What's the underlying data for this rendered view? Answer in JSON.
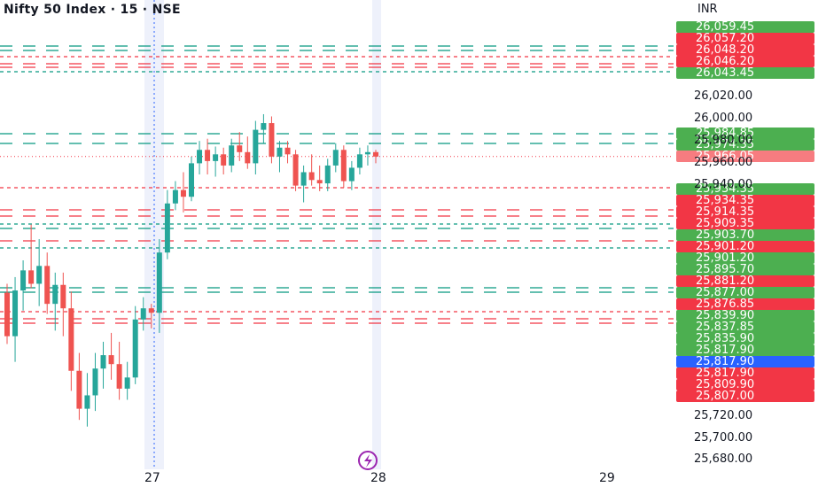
{
  "header": {
    "title": "Nifty 50 Index · 15 · NSE"
  },
  "axis": {
    "currency": "INR",
    "y_ticks": [
      "26,020.00",
      "26,000.00",
      "25,980.00",
      "25,960.00",
      "25,940.00",
      "25,720.00",
      "25,700.00",
      "25,680.00"
    ],
    "x_ticks": [
      "27",
      "28",
      "29"
    ]
  },
  "colors": {
    "up": "#26a69a",
    "down": "#ef5350",
    "tag_green": "#4caf50",
    "tag_red": "#f23645",
    "tag_current": "#f77c80",
    "tag_blue": "#2962ff",
    "line_green": "#089981",
    "line_red": "#f23645"
  },
  "price_tags": [
    {
      "label": "26,059.45",
      "color": "green"
    },
    {
      "label": "26,057.20",
      "color": "red"
    },
    {
      "label": "26,048.20",
      "color": "red"
    },
    {
      "label": "26,046.20",
      "color": "red"
    },
    {
      "label": "26,043.45",
      "color": "green"
    },
    {
      "label": "25,984.85",
      "color": "green"
    },
    {
      "label": "25,974.35",
      "color": "green"
    },
    {
      "label": "25,966.05",
      "color": "current"
    },
    {
      "label": "25,934.35",
      "color": "green"
    },
    {
      "label": "25,934.35",
      "color": "red"
    },
    {
      "label": "25,914.35",
      "color": "red"
    },
    {
      "label": "25,909.35",
      "color": "red"
    },
    {
      "label": "25,903.70",
      "color": "green"
    },
    {
      "label": "25,901.20",
      "color": "red"
    },
    {
      "label": "25,901.20",
      "color": "green"
    },
    {
      "label": "25,895.70",
      "color": "green"
    },
    {
      "label": "25,881.20",
      "color": "red"
    },
    {
      "label": "25,877.00",
      "color": "green"
    },
    {
      "label": "25,876.85",
      "color": "red"
    },
    {
      "label": "25,839.90",
      "color": "green"
    },
    {
      "label": "25,837.85",
      "color": "green"
    },
    {
      "label": "25,835.90",
      "color": "green"
    },
    {
      "label": "25,817.90",
      "color": "green"
    },
    {
      "label": "25,817.90",
      "color": "blue"
    },
    {
      "label": "25,817.90",
      "color": "red"
    },
    {
      "label": "25,809.90",
      "color": "red"
    },
    {
      "label": "25,807.00",
      "color": "red"
    }
  ],
  "chart_data": {
    "type": "candlestick",
    "title": "Nifty 50 Index · 15 · NSE",
    "currency": "INR",
    "x_ticks": [
      "27",
      "28",
      "29"
    ],
    "last_price": 25966.05,
    "candles": [
      {
        "o": 25844,
        "h": 25852,
        "l": 25798,
        "c": 25805
      },
      {
        "o": 25805,
        "h": 25858,
        "l": 25782,
        "c": 25846
      },
      {
        "o": 25846,
        "h": 25873,
        "l": 25828,
        "c": 25864
      },
      {
        "o": 25864,
        "h": 25905,
        "l": 25848,
        "c": 25852
      },
      {
        "o": 25852,
        "h": 25892,
        "l": 25832,
        "c": 25868
      },
      {
        "o": 25868,
        "h": 25880,
        "l": 25825,
        "c": 25834
      },
      {
        "o": 25834,
        "h": 25862,
        "l": 25810,
        "c": 25851
      },
      {
        "o": 25851,
        "h": 25862,
        "l": 25805,
        "c": 25830
      },
      {
        "o": 25830,
        "h": 25845,
        "l": 25756,
        "c": 25774
      },
      {
        "o": 25774,
        "h": 25790,
        "l": 25730,
        "c": 25740
      },
      {
        "o": 25740,
        "h": 25772,
        "l": 25724,
        "c": 25752
      },
      {
        "o": 25752,
        "h": 25790,
        "l": 25738,
        "c": 25776
      },
      {
        "o": 25776,
        "h": 25800,
        "l": 25758,
        "c": 25788
      },
      {
        "o": 25788,
        "h": 25808,
        "l": 25766,
        "c": 25780
      },
      {
        "o": 25780,
        "h": 25800,
        "l": 25748,
        "c": 25758
      },
      {
        "o": 25758,
        "h": 25782,
        "l": 25748,
        "c": 25768
      },
      {
        "o": 25768,
        "h": 25832,
        "l": 25762,
        "c": 25820
      },
      {
        "o": 25820,
        "h": 25840,
        "l": 25810,
        "c": 25830
      },
      {
        "o": 25830,
        "h": 25834,
        "l": 25812,
        "c": 25826
      },
      {
        "o": 25826,
        "h": 25892,
        "l": 25808,
        "c": 25880
      },
      {
        "o": 25880,
        "h": 25936,
        "l": 25874,
        "c": 25924
      },
      {
        "o": 25924,
        "h": 25944,
        "l": 25918,
        "c": 25936
      },
      {
        "o": 25936,
        "h": 25952,
        "l": 25916,
        "c": 25930
      },
      {
        "o": 25930,
        "h": 25966,
        "l": 25926,
        "c": 25960
      },
      {
        "o": 25960,
        "h": 25980,
        "l": 25950,
        "c": 25972
      },
      {
        "o": 25972,
        "h": 25982,
        "l": 25950,
        "c": 25962
      },
      {
        "o": 25962,
        "h": 25975,
        "l": 25948,
        "c": 25968
      },
      {
        "o": 25968,
        "h": 25974,
        "l": 25950,
        "c": 25958
      },
      {
        "o": 25958,
        "h": 25982,
        "l": 25952,
        "c": 25976
      },
      {
        "o": 25976,
        "h": 25988,
        "l": 25962,
        "c": 25970
      },
      {
        "o": 25970,
        "h": 25984,
        "l": 25955,
        "c": 25960
      },
      {
        "o": 25960,
        "h": 25998,
        "l": 25950,
        "c": 25990
      },
      {
        "o": 25990,
        "h": 26004,
        "l": 25978,
        "c": 25996
      },
      {
        "o": 25996,
        "h": 26002,
        "l": 25960,
        "c": 25966
      },
      {
        "o": 25966,
        "h": 25980,
        "l": 25952,
        "c": 25974
      },
      {
        "o": 25974,
        "h": 25980,
        "l": 25960,
        "c": 25968
      },
      {
        "o": 25968,
        "h": 25972,
        "l": 25935,
        "c": 25940
      },
      {
        "o": 25940,
        "h": 25958,
        "l": 25925,
        "c": 25952
      },
      {
        "o": 25952,
        "h": 25968,
        "l": 25940,
        "c": 25945
      },
      {
        "o": 25945,
        "h": 25958,
        "l": 25935,
        "c": 25942
      },
      {
        "o": 25942,
        "h": 25964,
        "l": 25935,
        "c": 25958
      },
      {
        "o": 25958,
        "h": 25978,
        "l": 25952,
        "c": 25972
      },
      {
        "o": 25972,
        "h": 25976,
        "l": 25938,
        "c": 25944
      },
      {
        "o": 25944,
        "h": 25962,
        "l": 25936,
        "c": 25956
      },
      {
        "o": 25956,
        "h": 25974,
        "l": 25950,
        "c": 25968
      },
      {
        "o": 25968,
        "h": 25976,
        "l": 25958,
        "c": 25970
      },
      {
        "o": 25970,
        "h": 25972,
        "l": 25960,
        "c": 25966
      }
    ]
  }
}
